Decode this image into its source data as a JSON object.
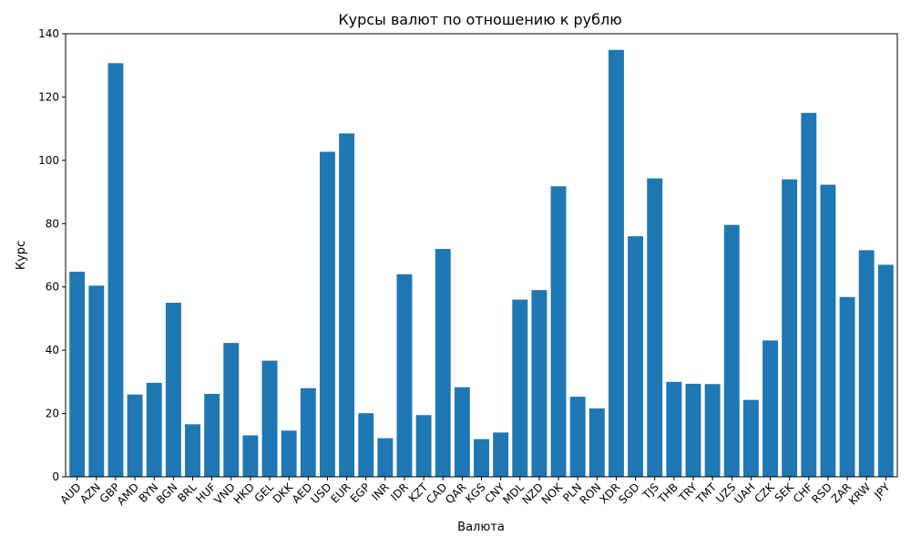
{
  "chart_data": {
    "type": "bar",
    "title": "Курсы валют по отношению к рублю",
    "xlabel": "Валюта",
    "ylabel": "Курс",
    "ylim": [
      0,
      140
    ],
    "yticks": [
      0,
      20,
      40,
      60,
      80,
      100,
      120,
      140
    ],
    "grid": false,
    "bar_color": "#1f77b4",
    "categories": [
      "AUD",
      "AZN",
      "GBP",
      "AMD",
      "BYN",
      "BGN",
      "BRL",
      "HUF",
      "VND",
      "HKD",
      "GEL",
      "DKK",
      "AED",
      "USD",
      "EUR",
      "EGP",
      "INR",
      "IDR",
      "KZT",
      "CAD",
      "QAR",
      "KGS",
      "CNY",
      "MDL",
      "NZD",
      "NOK",
      "PLN",
      "RON",
      "XDR",
      "SGD",
      "TJS",
      "THB",
      "TRY",
      "TMT",
      "UZS",
      "UAH",
      "CZK",
      "SEK",
      "CHF",
      "RSD",
      "ZAR",
      "KRW",
      "JPY"
    ],
    "values": [
      64.8,
      60.4,
      130.7,
      26.0,
      29.7,
      55.0,
      16.6,
      26.2,
      42.3,
      13.1,
      36.7,
      14.6,
      28.0,
      102.7,
      108.5,
      20.1,
      12.2,
      64.0,
      19.5,
      72.0,
      28.3,
      11.9,
      14.0,
      56.0,
      59.0,
      91.8,
      25.3,
      21.6,
      134.9,
      76.0,
      94.3,
      30.0,
      29.4,
      29.3,
      79.6,
      24.3,
      43.1,
      94.0,
      115.0,
      92.3,
      56.8,
      71.6,
      67.0
    ]
  }
}
